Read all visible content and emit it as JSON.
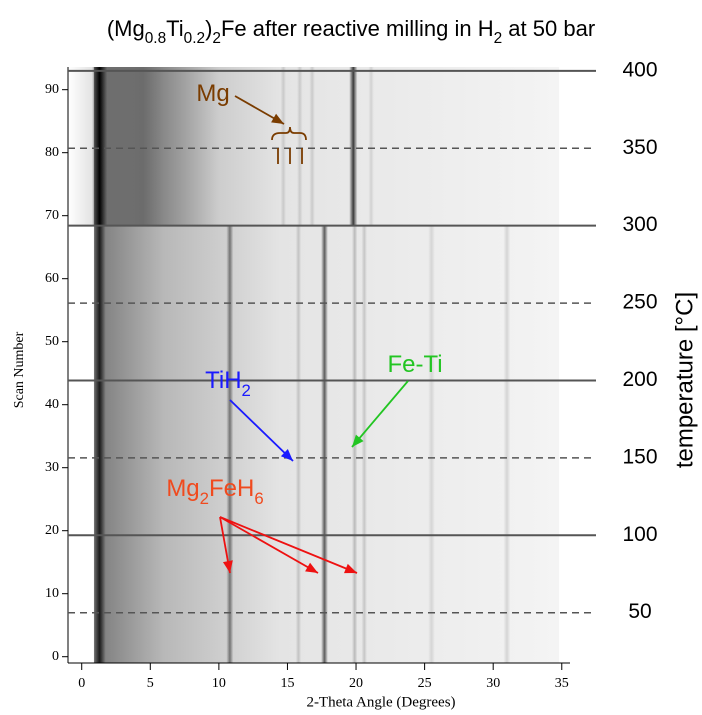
{
  "chart_data": {
    "type": "heatmap",
    "title": [
      {
        "text": "(Mg"
      },
      {
        "text": "0.8",
        "sub": true
      },
      {
        "text": "Ti"
      },
      {
        "text": "0.2",
        "sub": true
      },
      {
        "text": ")"
      },
      {
        "text": "2",
        "sub": true
      },
      {
        "text": "Fe after reactive milling in H"
      },
      {
        "text": "2",
        "sub": true
      },
      {
        "text": " at 50 bar"
      }
    ],
    "x_label": "2-Theta Angle (Degrees)",
    "y_label": "Scan Number",
    "y2_label": "temperature [°C]",
    "xlim": [
      -1,
      35.6
    ],
    "xticks": [
      0,
      5,
      10,
      15,
      20,
      25,
      30,
      35
    ],
    "ylim": [
      -1,
      93.6
    ],
    "yticks": [
      0,
      10,
      20,
      30,
      40,
      50,
      60,
      70,
      80,
      90
    ],
    "y2lim": [
      17.5,
      402.5
    ],
    "y2ticks": [
      50,
      100,
      150,
      200,
      250,
      300,
      350,
      400
    ],
    "y2grid": true,
    "peaks": [
      {
        "x": 1.3,
        "width": 0.9,
        "scans": [
          -1,
          68.5
        ],
        "intensity": 0.8
      },
      {
        "x": 1.3,
        "width": 1.1,
        "scans": [
          68.5,
          93.6
        ],
        "intensity": 1.0
      },
      {
        "x": 4.5,
        "width": 11,
        "scans": [
          68.5,
          93.6
        ],
        "intensity": 0.35
      },
      {
        "x": 10.8,
        "width": 0.5,
        "scans": [
          -1,
          68.5
        ],
        "intensity": 0.45
      },
      {
        "x": 15.8,
        "width": 0.4,
        "scans": [
          -1,
          68.5
        ],
        "intensity": 0.15
      },
      {
        "x": 17.7,
        "width": 0.5,
        "scans": [
          -1,
          68.5
        ],
        "intensity": 0.6
      },
      {
        "x": 19.9,
        "width": 0.4,
        "scans": [
          -1,
          68.5
        ],
        "intensity": 0.2
      },
      {
        "x": 20.6,
        "width": 0.4,
        "scans": [
          -1,
          68.5
        ],
        "intensity": 0.15
      },
      {
        "x": 25.5,
        "width": 0.5,
        "scans": [
          -1,
          68.5
        ],
        "intensity": 0.1
      },
      {
        "x": 31,
        "width": 0.5,
        "scans": [
          -1,
          68.5
        ],
        "intensity": 0.12
      },
      {
        "x": 19.8,
        "width": 0.6,
        "scans": [
          68.5,
          93.6
        ],
        "intensity": 0.75
      },
      {
        "x": 14.7,
        "width": 0.4,
        "scans": [
          68.5,
          93.6
        ],
        "intensity": 0.12
      },
      {
        "x": 15.9,
        "width": 0.4,
        "scans": [
          68.5,
          93.6
        ],
        "intensity": 0.12
      },
      {
        "x": 16.8,
        "width": 0.4,
        "scans": [
          68.5,
          93.6
        ],
        "intensity": 0.12
      },
      {
        "x": 21.1,
        "width": 0.4,
        "scans": [
          68.5,
          93.6
        ],
        "intensity": 0.1
      }
    ],
    "annotations": [
      {
        "parts": [
          {
            "text": "Mg"
          }
        ],
        "color": "#7a3c00"
      },
      {
        "parts": [
          {
            "text": "TiH"
          },
          {
            "text": "2",
            "sub": true
          }
        ],
        "color": "#1a1aff"
      },
      {
        "parts": [
          {
            "text": "Fe-Ti"
          }
        ],
        "color": "#22c522"
      },
      {
        "parts": [
          {
            "text": "Mg"
          },
          {
            "text": "2",
            "sub": true
          },
          {
            "text": "FeH"
          },
          {
            "text": "6",
            "sub": true
          }
        ],
        "color": "#f04a1e"
      }
    ]
  }
}
